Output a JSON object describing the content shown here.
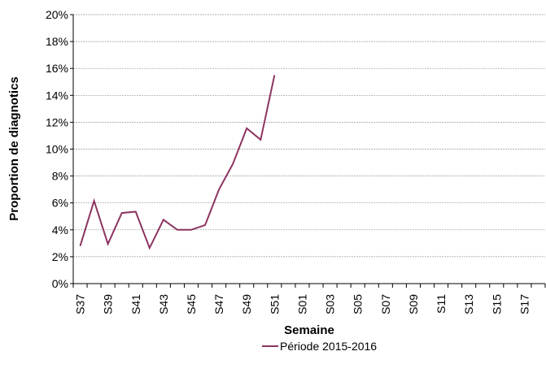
{
  "chart_data": {
    "type": "line",
    "y_label": "Proportion de diagnotics",
    "x_label": "Semaine",
    "categories": [
      "S37",
      null,
      "S39",
      null,
      "S41",
      null,
      "S43",
      null,
      "S45",
      null,
      "S47",
      null,
      "S49",
      null,
      "S51",
      null,
      "S01",
      null,
      "S03",
      null,
      "S05",
      null,
      "S07",
      null,
      "S09",
      null,
      "S11",
      null,
      "S13",
      null,
      "S15",
      null,
      "S17",
      null
    ],
    "series": [
      {
        "name": "Période 2015-2016",
        "color": "#8c3461",
        "values": [
          2.8,
          6.15,
          2.95,
          5.25,
          5.35,
          2.65,
          4.75,
          4.0,
          4.0,
          4.35,
          7.0,
          8.9,
          11.55,
          10.7,
          15.5,
          null,
          null,
          null,
          null,
          null,
          null,
          null,
          null,
          null,
          null,
          null,
          null,
          null,
          null,
          null,
          null,
          null,
          null,
          null
        ]
      }
    ],
    "ylim": [
      0,
      20
    ],
    "yticks": [
      {
        "value": 0,
        "label": "0%"
      },
      {
        "value": 2,
        "label": "2%"
      },
      {
        "value": 4,
        "label": "4%"
      },
      {
        "value": 6,
        "label": "6%"
      },
      {
        "value": 8,
        "label": "8%"
      },
      {
        "value": 10,
        "label": "10%"
      },
      {
        "value": 12,
        "label": "12%"
      },
      {
        "value": 14,
        "label": "14%"
      },
      {
        "value": 16,
        "label": "16%"
      },
      {
        "value": 18,
        "label": "18%"
      },
      {
        "value": 20,
        "label": "20%"
      }
    ],
    "grid": true,
    "legend": "bottom"
  }
}
